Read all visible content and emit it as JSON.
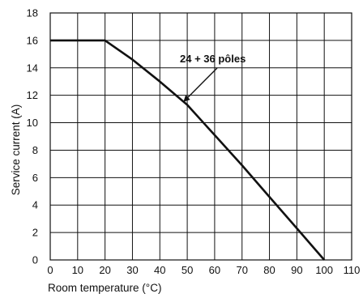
{
  "chart_data": {
    "type": "line",
    "xlabel": "Room temperature (°C)",
    "ylabel": "Service current (A)",
    "xlim": [
      0,
      110
    ],
    "ylim": [
      0,
      18
    ],
    "xticks": [
      0,
      10,
      20,
      30,
      40,
      50,
      60,
      70,
      80,
      90,
      100,
      110
    ],
    "yticks": [
      0,
      2,
      4,
      6,
      8,
      10,
      12,
      14,
      16,
      18
    ],
    "grid": true,
    "series": [
      {
        "x": [
          0,
          20,
          30,
          40,
          50,
          60,
          70,
          80,
          90,
          100
        ],
        "y": [
          16,
          16,
          14.6,
          13.0,
          11.3,
          9.1,
          6.9,
          4.6,
          2.3,
          0
        ]
      }
    ],
    "annotations": [
      {
        "text": "24 + 36 pôles",
        "x": 49,
        "y": 11.6
      }
    ],
    "colors": {
      "line": "#111111",
      "grid": "#111111"
    }
  }
}
